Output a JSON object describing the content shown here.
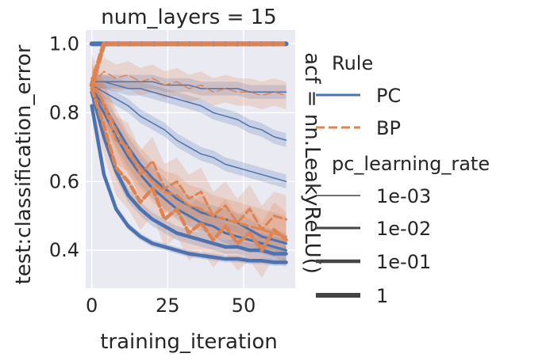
{
  "chart_data": {
    "type": "line",
    "title": "num_layers = 15",
    "facet_label": "acf = nn.LeakyReLU()",
    "xlabel": "training_iteration",
    "ylabel": "test:classification_error",
    "xlim": [
      -2,
      67
    ],
    "ylim": [
      0.29,
      1.04
    ],
    "x_ticks": [
      0,
      25,
      50
    ],
    "y_ticks": [
      0.4,
      0.6,
      0.8,
      1.0
    ],
    "x_tick_labels": [
      "0",
      "25",
      "50"
    ],
    "y_tick_labels": [
      "0.4",
      "0.6",
      "0.8",
      "1.0"
    ],
    "grid": true,
    "legend_placement": "right",
    "colors": {
      "PC": "#4c72b0",
      "BP": "#dd8452",
      "background": "#eaeaf2",
      "grid": "#ffffff"
    },
    "legend": {
      "rule_title": "Rule",
      "rules": [
        {
          "label": "PC",
          "dash": "solid"
        },
        {
          "label": "BP",
          "dash": "dashed"
        }
      ],
      "lr_title": "pc_learning_rate",
      "lrs": [
        {
          "label": "1e-03",
          "width": 1.5
        },
        {
          "label": "1e-02",
          "width": 3
        },
        {
          "label": "1e-01",
          "width": 4.5
        },
        {
          "label": "1",
          "width": 6
        }
      ]
    },
    "x": [
      0,
      4,
      8,
      12,
      16,
      20,
      24,
      28,
      32,
      36,
      40,
      44,
      48,
      52,
      56,
      60,
      64
    ],
    "series": [
      {
        "rule": "PC",
        "lr": "1e-03",
        "values": [
          0.89,
          0.89,
          0.89,
          0.89,
          0.89,
          0.89,
          0.88,
          0.88,
          0.88,
          0.87,
          0.87,
          0.87,
          0.87,
          0.86,
          0.86,
          0.86,
          0.86
        ],
        "ci": 0.02
      },
      {
        "rule": "PC",
        "lr": "1e-03",
        "values": [
          0.89,
          0.89,
          0.88,
          0.87,
          0.87,
          0.86,
          0.85,
          0.84,
          0.83,
          0.82,
          0.8,
          0.79,
          0.78,
          0.76,
          0.75,
          0.73,
          0.72
        ],
        "ci": 0.02
      },
      {
        "rule": "PC",
        "lr": "1e-03",
        "values": [
          0.88,
          0.86,
          0.84,
          0.82,
          0.79,
          0.77,
          0.75,
          0.72,
          0.7,
          0.68,
          0.67,
          0.65,
          0.64,
          0.63,
          0.62,
          0.61,
          0.6
        ],
        "ci": 0.02
      },
      {
        "rule": "PC",
        "lr": "1e-02",
        "values": [
          0.86,
          0.8,
          0.73,
          0.67,
          0.62,
          0.58,
          0.55,
          0.52,
          0.5,
          0.48,
          0.47,
          0.45,
          0.44,
          0.43,
          0.42,
          0.41,
          0.4
        ],
        "ci": 0.03
      },
      {
        "rule": "PC",
        "lr": "1e-02",
        "values": [
          0.87,
          0.82,
          0.76,
          0.7,
          0.65,
          0.61,
          0.58,
          0.55,
          0.53,
          0.51,
          0.5,
          0.49,
          0.48,
          0.46,
          0.44,
          0.43,
          0.42
        ],
        "ci": 0.03
      },
      {
        "rule": "PC",
        "lr": "1e-01",
        "values": [
          0.82,
          0.62,
          0.52,
          0.47,
          0.44,
          0.42,
          0.41,
          0.4,
          0.39,
          0.385,
          0.38,
          0.375,
          0.375,
          0.37,
          0.37,
          0.365,
          0.365
        ],
        "ci": 0.01
      },
      {
        "rule": "PC",
        "lr": "1e-01",
        "values": [
          0.86,
          0.73,
          0.63,
          0.56,
          0.52,
          0.49,
          0.47,
          0.45,
          0.44,
          0.43,
          0.42,
          0.41,
          0.41,
          0.4,
          0.4,
          0.39,
          0.39
        ],
        "ci": 0.02
      },
      {
        "rule": "PC",
        "lr": "1",
        "values": [
          1.0,
          1.0,
          1.0,
          1.0,
          1.0,
          1.0,
          1.0,
          1.0,
          1.0,
          1.0,
          1.0,
          1.0,
          1.0,
          1.0,
          1.0,
          1.0,
          1.0
        ],
        "ci": 0
      },
      {
        "rule": "BP",
        "lr": "1",
        "values": [
          0.88,
          1.0,
          1.0,
          1.0,
          1.0,
          1.0,
          1.0,
          1.0,
          1.0,
          1.0,
          1.0,
          1.0,
          1.0,
          1.0,
          1.0,
          1.0,
          1.0
        ],
        "ci": 0
      },
      {
        "rule": "BP",
        "lr": "1e-03",
        "values": [
          0.88,
          0.92,
          0.9,
          0.91,
          0.89,
          0.9,
          0.88,
          0.89,
          0.87,
          0.88,
          0.86,
          0.87,
          0.86,
          0.86,
          0.85,
          0.86,
          0.85
        ],
        "ci": 0.04
      },
      {
        "rule": "BP",
        "lr": "1e-02",
        "values": [
          0.88,
          0.83,
          0.75,
          0.68,
          0.64,
          0.6,
          0.57,
          0.56,
          0.53,
          0.52,
          0.5,
          0.49,
          0.48,
          0.47,
          0.46,
          0.45,
          0.44
        ],
        "ci": 0.06
      },
      {
        "rule": "BP",
        "lr": "1e-02",
        "values": [
          0.9,
          0.82,
          0.72,
          0.7,
          0.62,
          0.66,
          0.58,
          0.6,
          0.55,
          0.57,
          0.5,
          0.53,
          0.48,
          0.52,
          0.46,
          0.5,
          0.49
        ],
        "ci": 0.07
      },
      {
        "rule": "BP",
        "lr": "1e-01",
        "values": [
          0.87,
          0.76,
          0.64,
          0.6,
          0.54,
          0.58,
          0.49,
          0.52,
          0.45,
          0.48,
          0.43,
          0.47,
          0.42,
          0.45,
          0.4,
          0.46,
          0.43
        ],
        "ci": 0.08
      }
    ]
  }
}
